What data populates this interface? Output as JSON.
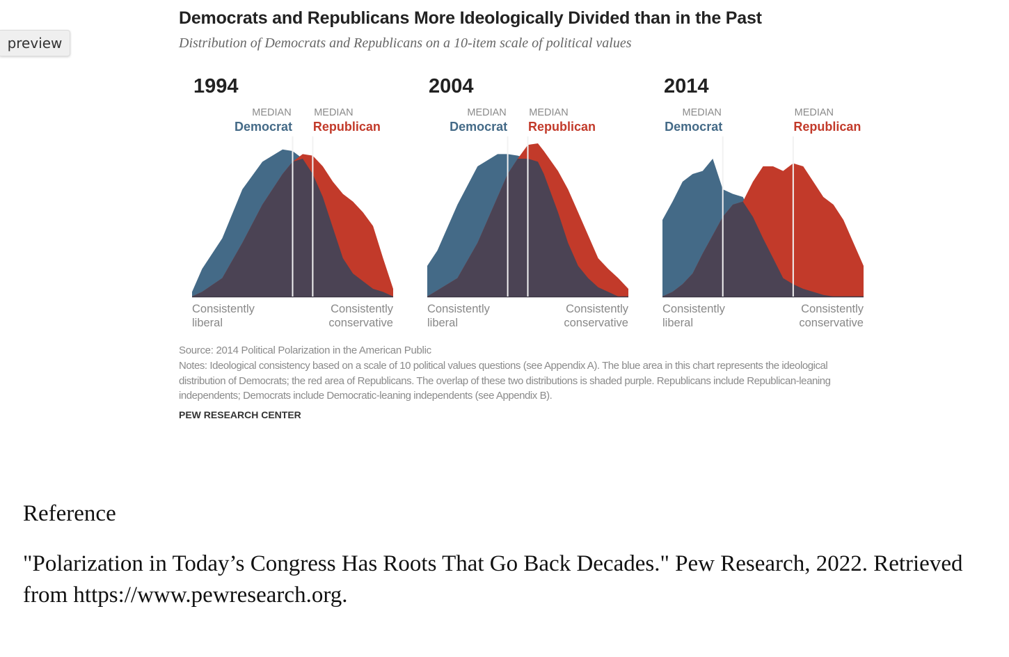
{
  "preview_label": "preview",
  "chart_data": {
    "type": "area",
    "title": "Democrats and Republicans More Ideologically Divided than in the Past",
    "subtitle": "Distribution of Democrats and Republicans on a 10-item scale of political values",
    "x_left_label": [
      "Consistently",
      "liberal"
    ],
    "x_right_label": [
      "Consistently",
      "conservative"
    ],
    "median_caption": "MEDIAN",
    "colors": {
      "democrat": "#446a87",
      "republican": "#c23a2a",
      "overlap": "#4b4354",
      "median_line": "#f2f2f2"
    },
    "ylim": [
      0,
      100
    ],
    "panels": [
      {
        "year": "1994",
        "x": [
          0,
          0.05,
          0.15,
          0.25,
          0.35,
          0.45,
          0.5,
          0.55,
          0.6,
          0.65,
          0.7,
          0.75,
          0.8,
          0.85,
          0.9,
          0.95,
          1
        ],
        "series": [
          {
            "name": "Democrat",
            "values": [
              3,
              18,
              38,
              70,
              88,
              96,
              95,
              90,
              80,
              65,
              45,
              25,
              15,
              10,
              5,
              3,
              0
            ]
          },
          {
            "name": "Republican",
            "values": [
              0,
              3,
              12,
              35,
              60,
              80,
              88,
              93,
              92,
              85,
              75,
              67,
              62,
              55,
              46,
              25,
              5
            ]
          }
        ],
        "medians": {
          "democrat_x": 0.5,
          "republican_x": 0.6,
          "democrat_label": "Democrat",
          "republican_label": "Republican"
        }
      },
      {
        "year": "2004",
        "x": [
          0,
          0.05,
          0.15,
          0.25,
          0.35,
          0.4,
          0.45,
          0.5,
          0.55,
          0.58,
          0.65,
          0.7,
          0.75,
          0.8,
          0.85,
          0.9,
          0.95,
          1
        ],
        "series": [
          {
            "name": "Democrat",
            "values": [
              20,
              30,
              60,
              85,
              93,
              93,
              92,
              90,
              88,
              80,
              55,
              35,
              20,
              12,
              6,
              3,
              0,
              0
            ]
          },
          {
            "name": "Republican",
            "values": [
              0,
              4,
              12,
              35,
              65,
              80,
              90,
              99,
              100,
              95,
              82,
              70,
              55,
              40,
              25,
              18,
              12,
              5
            ]
          }
        ],
        "medians": {
          "democrat_x": 0.4,
          "republican_x": 0.5,
          "democrat_label": "Democrat",
          "republican_label": "Republican"
        }
      },
      {
        "year": "2014",
        "x": [
          0,
          0.05,
          0.1,
          0.15,
          0.2,
          0.25,
          0.3,
          0.35,
          0.4,
          0.45,
          0.5,
          0.55,
          0.6,
          0.65,
          0.7,
          0.75,
          0.8,
          0.85,
          0.9,
          0.95,
          1
        ],
        "series": [
          {
            "name": "Democrat",
            "values": [
              50,
              62,
              75,
              80,
              82,
              90,
              70,
              67,
              65,
              52,
              38,
              25,
              12,
              8,
              5,
              3,
              1,
              0,
              0,
              0,
              0
            ]
          },
          {
            "name": "Republican",
            "values": [
              0,
              3,
              8,
              15,
              28,
              40,
              52,
              60,
              62,
              75,
              85,
              85,
              82,
              87,
              85,
              75,
              65,
              60,
              50,
              35,
              20
            ]
          }
        ],
        "medians": {
          "democrat_x": 0.3,
          "republican_x": 0.65,
          "democrat_label": "Democrat",
          "republican_label": "Republican"
        }
      }
    ]
  },
  "source": "Source: 2014 Political Polarization in the American Public",
  "notes": "Notes: Ideological consistency based on a scale of 10 political values questions (see Appendix A). The blue area in this chart represents the ideological distribution of Democrats; the red area of Republicans. The overlap of these two distributions is shaded purple. Republicans include Republican-leaning independents; Democrats include Democratic-leaning independents (see Appendix B).",
  "brand": "PEW RESEARCH CENTER",
  "reference": {
    "heading": "Reference",
    "text": "\"Polarization in Today’s Congress Has Roots That Go Back Decades.\" Pew Research, 2022. Retrieved from https://www.pewresearch.org."
  }
}
